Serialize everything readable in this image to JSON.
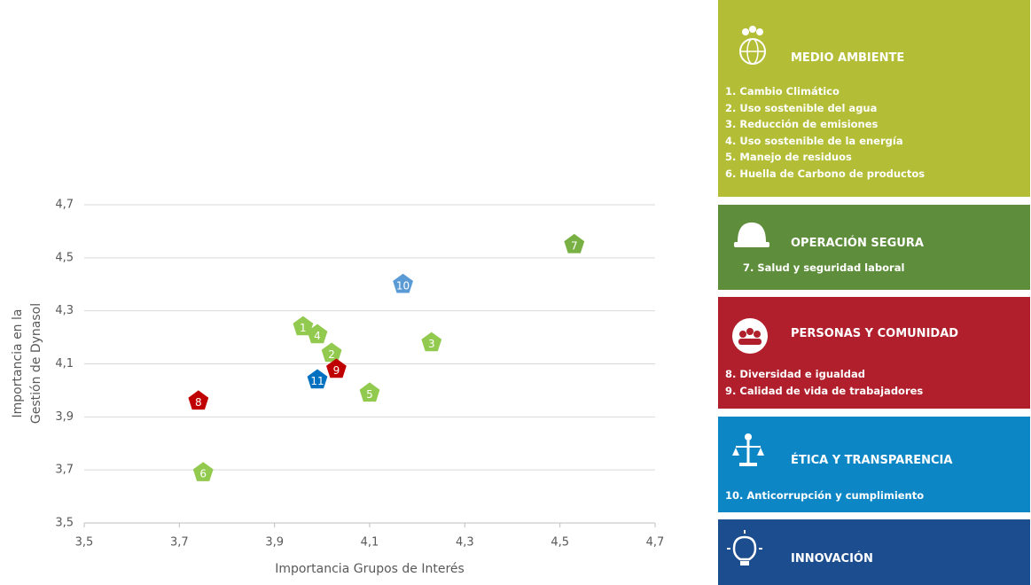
{
  "chart_data": {
    "type": "scatter",
    "x_label": "Importancia Grupos de Interés",
    "y_label": [
      "Importancia en la",
      "Gestión de  Dynasol"
    ],
    "labels": [
      "1",
      "2",
      "3",
      "4",
      "5",
      "6",
      "7",
      "8",
      "9",
      "10",
      "11"
    ],
    "x": [
      3.96,
      4.02,
      4.23,
      3.99,
      4.1,
      3.75,
      4.53,
      3.74,
      4.03,
      4.17,
      3.99
    ],
    "y": [
      4.24,
      4.14,
      4.18,
      4.21,
      3.99,
      3.69,
      4.55,
      3.96,
      4.08,
      4.4,
      4.04
    ],
    "colors": [
      "#92c94f",
      "#92c94f",
      "#92c94f",
      "#92c94f",
      "#92c94f",
      "#92c94f",
      "#78b043",
      "#c00000",
      "#c00000",
      "#5b9bd5",
      "#0070c0"
    ],
    "xlim": [
      3.5,
      4.7
    ],
    "ylim": [
      3.5,
      4.7
    ],
    "xticks": [
      {
        "value": 3.5,
        "label": "3,5"
      },
      {
        "value": 3.7,
        "label": "3,7"
      },
      {
        "value": 3.9,
        "label": "3,9"
      },
      {
        "value": 4.1,
        "label": "4,1"
      },
      {
        "value": 4.3,
        "label": "4,3"
      },
      {
        "value": 4.5,
        "label": "4,5"
      },
      {
        "value": 4.7,
        "label": "4,7"
      }
    ],
    "yticks": [
      {
        "value": 3.5,
        "label": "3,5"
      },
      {
        "value": 3.7,
        "label": "3,7"
      },
      {
        "value": 3.9,
        "label": "3,9"
      },
      {
        "value": 4.1,
        "label": "4,1"
      },
      {
        "value": 4.3,
        "label": "4,3"
      },
      {
        "value": 4.5,
        "label": "4,5"
      },
      {
        "value": 4.7,
        "label": "4,7"
      }
    ],
    "grid": true
  },
  "panels": [
    {
      "title": "MEDIO AMBIENTE",
      "color": "#b3bd35",
      "items": [
        "1. Cambio Climático",
        "2. Uso sostenible del agua",
        "3. Reducción de emisiones",
        "4. Uso sostenible de la energía",
        "5. Manejo de residuos",
        "6. Huella de Carbono de productos"
      ]
    },
    {
      "title": "OPERACIÓN SEGURA",
      "color": "#5e8e3c",
      "items": [
        "7. Salud y seguridad laboral"
      ]
    },
    {
      "title": "PERSONAS Y COMUNIDAD",
      "color": "#b01f2b",
      "items": [
        "8. Diversidad e igualdad",
        "9. Calidad de vida de trabajadores"
      ]
    },
    {
      "title": "ÉTICA Y TRANSPARENCIA",
      "color": "#0d86c6",
      "items": [
        "10. Anticorrupción y cumplimiento"
      ]
    },
    {
      "title": "INNOVACIÓN",
      "color": "#1c4d8e",
      "items": []
    }
  ]
}
